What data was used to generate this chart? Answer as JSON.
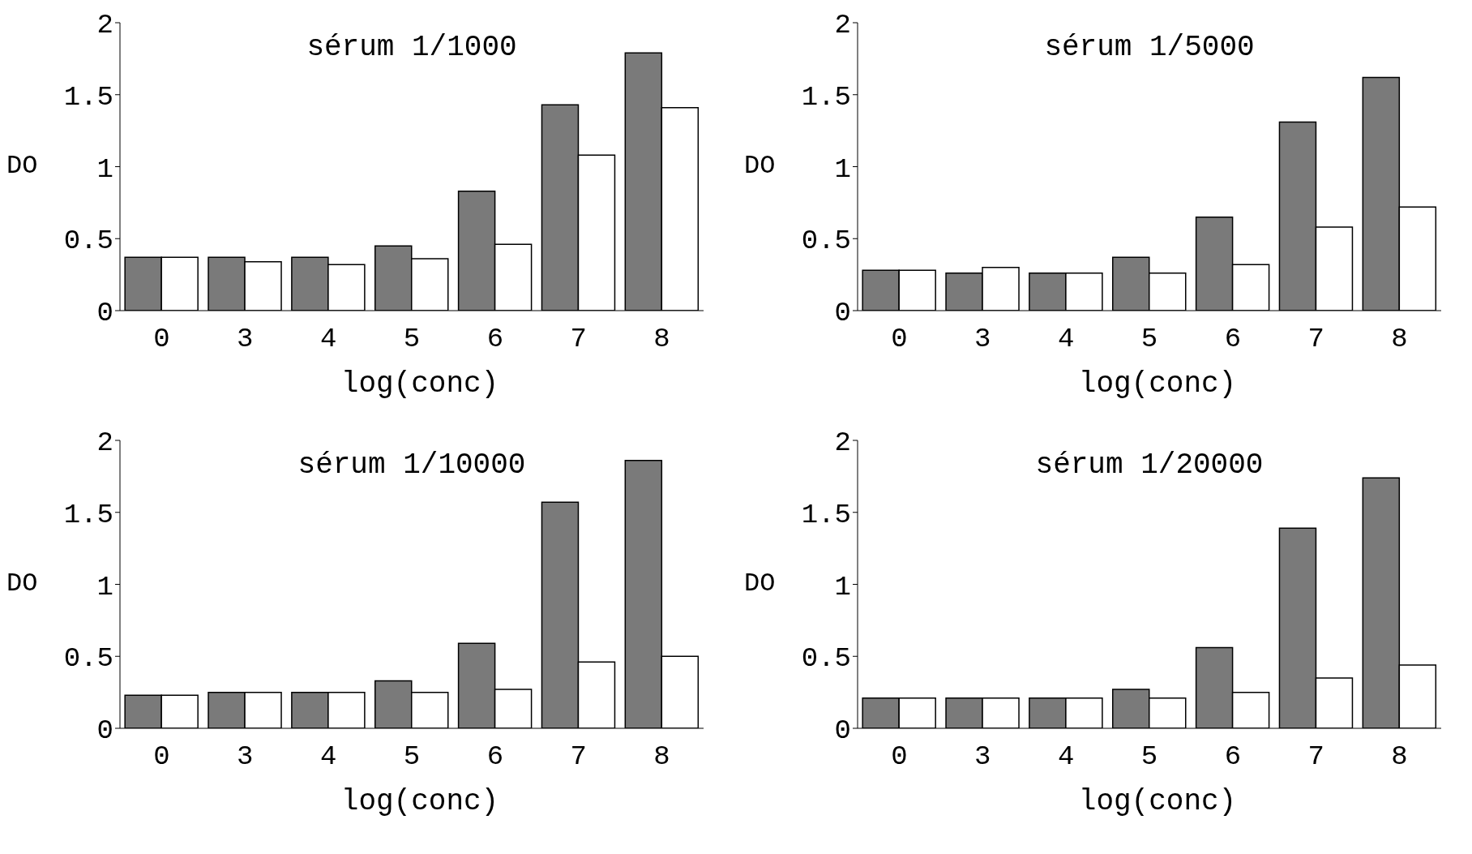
{
  "chart_data": [
    {
      "type": "bar",
      "title": "sérum 1/1000",
      "xlabel": "log(conc)",
      "ylabel": "DO",
      "categories": [
        "0",
        "3",
        "4",
        "5",
        "6",
        "7",
        "8"
      ],
      "ylim": [
        0,
        2
      ],
      "yticks": [
        0,
        0.5,
        1,
        1.5,
        2
      ],
      "series": [
        {
          "color": "#7a7a7a",
          "values": [
            0.37,
            0.37,
            0.37,
            0.45,
            0.83,
            1.43,
            1.79
          ]
        },
        {
          "color": "#ffffff",
          "values": [
            0.37,
            0.34,
            0.32,
            0.36,
            0.46,
            1.08,
            1.41
          ]
        }
      ]
    },
    {
      "type": "bar",
      "title": "sérum 1/5000",
      "xlabel": "log(conc)",
      "ylabel": "DO",
      "categories": [
        "0",
        "3",
        "4",
        "5",
        "6",
        "7",
        "8"
      ],
      "ylim": [
        0,
        2
      ],
      "yticks": [
        0,
        0.5,
        1,
        1.5,
        2
      ],
      "series": [
        {
          "color": "#7a7a7a",
          "values": [
            0.28,
            0.26,
            0.26,
            0.37,
            0.65,
            1.31,
            1.62
          ]
        },
        {
          "color": "#ffffff",
          "values": [
            0.28,
            0.3,
            0.26,
            0.26,
            0.32,
            0.58,
            0.72
          ]
        }
      ]
    },
    {
      "type": "bar",
      "title": "sérum 1/10000",
      "xlabel": "log(conc)",
      "ylabel": "DO",
      "categories": [
        "0",
        "3",
        "4",
        "5",
        "6",
        "7",
        "8"
      ],
      "ylim": [
        0,
        2
      ],
      "yticks": [
        0,
        0.5,
        1,
        1.5,
        2
      ],
      "series": [
        {
          "color": "#7a7a7a",
          "values": [
            0.23,
            0.25,
            0.25,
            0.33,
            0.59,
            1.57,
            1.86
          ]
        },
        {
          "color": "#ffffff",
          "values": [
            0.23,
            0.25,
            0.25,
            0.25,
            0.27,
            0.46,
            0.5
          ]
        }
      ]
    },
    {
      "type": "bar",
      "title": "sérum 1/20000",
      "xlabel": "log(conc)",
      "ylabel": "DO",
      "categories": [
        "0",
        "3",
        "4",
        "5",
        "6",
        "7",
        "8"
      ],
      "ylim": [
        0,
        2
      ],
      "yticks": [
        0,
        0.5,
        1,
        1.5,
        2
      ],
      "series": [
        {
          "color": "#7a7a7a",
          "values": [
            0.21,
            0.21,
            0.21,
            0.27,
            0.56,
            1.39,
            1.74
          ]
        },
        {
          "color": "#ffffff",
          "values": [
            0.21,
            0.21,
            0.21,
            0.21,
            0.25,
            0.35,
            0.44
          ]
        }
      ]
    }
  ]
}
